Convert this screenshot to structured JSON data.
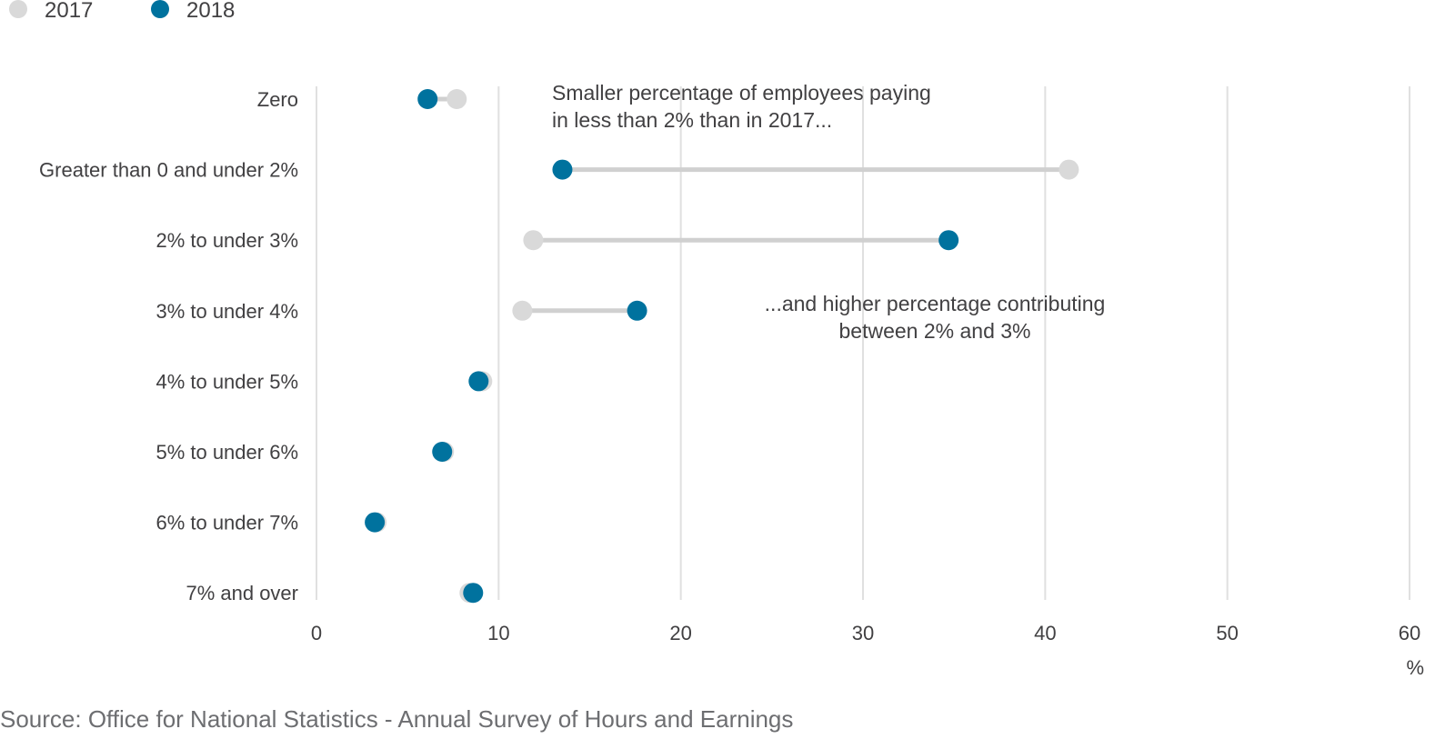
{
  "chart_data": {
    "type": "dumbbell",
    "legend": {
      "placement": "top-left",
      "items": [
        {
          "name": "2017",
          "color": "#d9d9d9"
        },
        {
          "name": "2018",
          "color": "#00729e"
        }
      ]
    },
    "categories": [
      "Zero",
      "Greater than 0 and under 2%",
      "2% to under 3%",
      "3% to under 4%",
      "4% to under 5%",
      "5% to under 6%",
      "6% to under 7%",
      "7% and over"
    ],
    "series": [
      {
        "name": "2017",
        "color": "#d9d9d9",
        "values": [
          7.7,
          41.3,
          11.9,
          11.3,
          9.1,
          7.0,
          3.3,
          8.4
        ]
      },
      {
        "name": "2018",
        "color": "#00729e",
        "values": [
          6.1,
          13.5,
          34.7,
          17.6,
          8.9,
          6.9,
          3.2,
          8.6
        ]
      }
    ],
    "xlim": [
      0,
      60
    ],
    "xticks": [
      "0",
      "10",
      "20",
      "30",
      "40",
      "50",
      "60"
    ],
    "xunit": "%",
    "grid": "vertical",
    "annotations": [
      {
        "lines": [
          "Smaller percentage of employees paying",
          "in less than 2% than in 2017..."
        ]
      },
      {
        "lines": [
          "...and higher percentage contributing",
          "between 2% and 3%"
        ]
      }
    ],
    "source": "Source: Office for National Statistics - Annual Survey of Hours and Earnings"
  }
}
